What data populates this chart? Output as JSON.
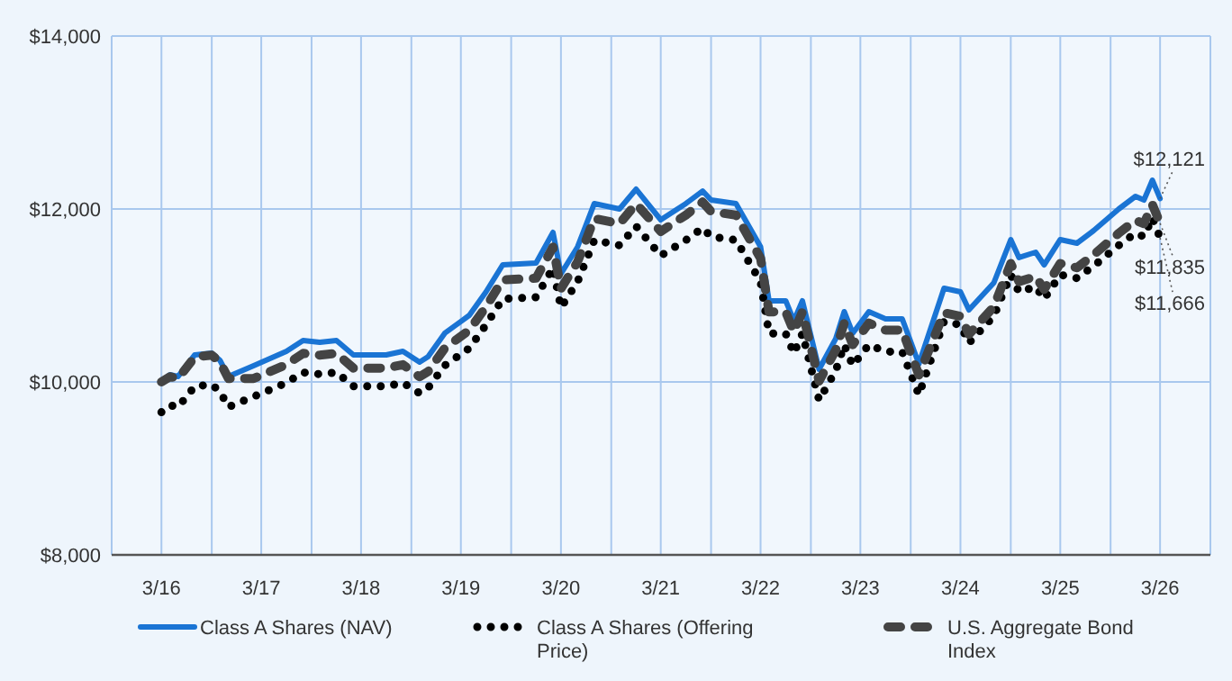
{
  "chart_data": {
    "type": "line",
    "x": [
      "2016-03",
      "2016-04",
      "2016-05",
      "2016-07",
      "2016-09",
      "2016-10",
      "2016-11",
      "2017-02",
      "2017-06",
      "2017-08",
      "2017-10",
      "2017-12",
      "2018-02",
      "2018-04",
      "2018-06",
      "2018-08",
      "2018-10",
      "2018-11",
      "2019-01",
      "2019-04",
      "2019-06",
      "2019-08",
      "2019-12",
      "2020-02",
      "2020-03",
      "2020-05",
      "2020-07",
      "2020-10",
      "2020-12",
      "2021-03",
      "2021-06",
      "2021-08",
      "2021-09",
      "2021-12",
      "2022-03",
      "2022-04",
      "2022-06",
      "2022-07",
      "2022-08",
      "2022-10",
      "2022-12",
      "2023-01",
      "2023-02",
      "2023-04",
      "2023-06",
      "2023-08",
      "2023-10",
      "2024-01",
      "2024-03",
      "2024-04",
      "2024-07",
      "2024-09",
      "2024-10",
      "2024-12",
      "2025-01",
      "2025-03",
      "2025-05",
      "2025-07",
      "2025-10",
      "2025-12",
      "2026-01",
      "2026-02",
      "2026-03"
    ],
    "series": [
      {
        "name": "Class A Shares (NAV)",
        "color": "#1a74d4",
        "line_style": "solid",
        "values": [
          10000,
          10083,
          10063,
          10313,
          10333,
          10250,
          10063,
          10188,
          10354,
          10479,
          10458,
          10479,
          10313,
          10313,
          10313,
          10354,
          10229,
          10292,
          10563,
          10771,
          11042,
          11354,
          11375,
          11729,
          11250,
          11563,
          12063,
          12000,
          12229,
          11875,
          12063,
          12208,
          12104,
          12063,
          11563,
          10938,
          10938,
          10708,
          10938,
          10146,
          10500,
          10813,
          10563,
          10813,
          10729,
          10729,
          10208,
          11083,
          11042,
          10833,
          11146,
          11646,
          11438,
          11500,
          11354,
          11646,
          11604,
          11750,
          12000,
          12146,
          12104,
          12333,
          12121
        ]
      },
      {
        "name": "Class A Shares (Offering Price)",
        "color": "#000000",
        "line_style": "dotted",
        "values": [
          9650,
          9730,
          9710,
          9950,
          9970,
          9890,
          9710,
          9830,
          9990,
          10110,
          10090,
          10110,
          9950,
          9950,
          9950,
          9990,
          9870,
          9930,
          10190,
          10390,
          10660,
          10960,
          10980,
          11320,
          10860,
          11160,
          11640,
          11580,
          11800,
          11460,
          11640,
          11780,
          11680,
          11640,
          11160,
          10560,
          10560,
          10330,
          10560,
          9790,
          10130,
          10430,
          10190,
          10430,
          10350,
          10350,
          9850,
          10700,
          10660,
          10450,
          10760,
          11240,
          11040,
          11100,
          10960,
          11240,
          11200,
          11340,
          11580,
          11720,
          11680,
          11900,
          11666
        ]
      },
      {
        "name": "U.S. Aggregate Bond Index",
        "color": "#444444",
        "line_style": "dashed",
        "values": [
          10000,
          10060,
          10040,
          10290,
          10310,
          10230,
          10040,
          10040,
          10200,
          10330,
          10310,
          10330,
          10160,
          10160,
          10160,
          10200,
          10060,
          10120,
          10390,
          10600,
          10870,
          11180,
          11200,
          11560,
          11080,
          11390,
          11890,
          11830,
          12060,
          11740,
          11930,
          12080,
          11970,
          11930,
          11430,
          10810,
          10810,
          10580,
          10810,
          10010,
          10370,
          10680,
          10430,
          10680,
          10600,
          10600,
          10080,
          10800,
          10760,
          10550,
          10870,
          11370,
          11160,
          11220,
          11070,
          11370,
          11320,
          11470,
          11720,
          11870,
          11830,
          12050,
          11835
        ]
      }
    ],
    "xlim": [
      "2015-09",
      "2026-09"
    ],
    "xticks": [
      {
        "value": "2015-09",
        "label": null
      },
      {
        "value": "2016-03",
        "label": "3/16"
      },
      {
        "value": "2016-09",
        "label": null
      },
      {
        "value": "2017-03",
        "label": "3/17"
      },
      {
        "value": "2017-09",
        "label": null
      },
      {
        "value": "2018-03",
        "label": "3/18"
      },
      {
        "value": "2018-09",
        "label": null
      },
      {
        "value": "2019-03",
        "label": "3/19"
      },
      {
        "value": "2019-09",
        "label": null
      },
      {
        "value": "2020-03",
        "label": "3/20"
      },
      {
        "value": "2020-09",
        "label": null
      },
      {
        "value": "2021-03",
        "label": "3/21"
      },
      {
        "value": "2021-09",
        "label": null
      },
      {
        "value": "2022-03",
        "label": "3/22"
      },
      {
        "value": "2022-09",
        "label": null
      },
      {
        "value": "2023-03",
        "label": "3/23"
      },
      {
        "value": "2023-09",
        "label": null
      },
      {
        "value": "2024-03",
        "label": "3/24"
      },
      {
        "value": "2024-09",
        "label": null
      },
      {
        "value": "2025-03",
        "label": "3/25"
      },
      {
        "value": "2025-09",
        "label": null
      },
      {
        "value": "2026-03",
        "label": "3/26"
      },
      {
        "value": "2026-09",
        "label": null
      }
    ],
    "ylim": [
      8000,
      14000
    ],
    "yticks": [
      {
        "value": 8000,
        "label": "$8,000"
      },
      {
        "value": 10000,
        "label": "$10,000"
      },
      {
        "value": 12000,
        "label": "$12,000"
      },
      {
        "value": 14000,
        "label": "$14,000"
      }
    ],
    "grid": true,
    "legend": "bottom",
    "marker": "none",
    "annotations": [
      {
        "text": "$12,121",
        "x": "2026-03",
        "y": 12121
      },
      {
        "text": "$11,835",
        "x": "2026-03",
        "y": 11835
      },
      {
        "text": "$11,666",
        "x": "2026-03",
        "y": 11666
      }
    ]
  }
}
